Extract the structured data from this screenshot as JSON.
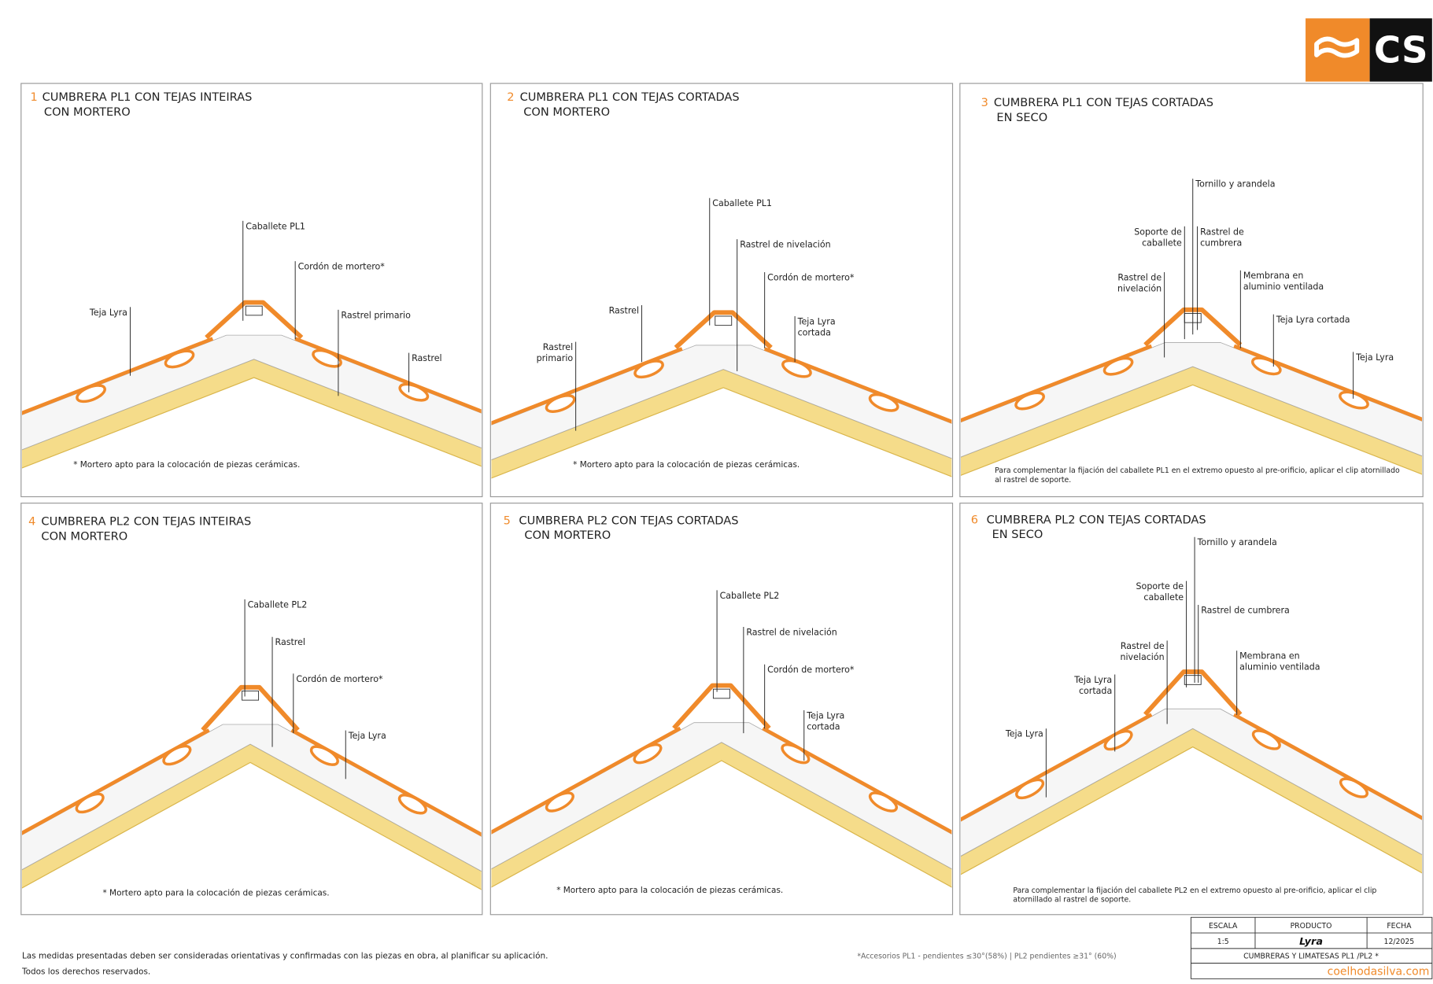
{
  "logo": "CS",
  "panels": [
    {
      "number": "1",
      "title": [
        "CUMBRERA PL1  CON TEJAS INTEIRAS",
        "CON MORTERO"
      ],
      "labels": [
        [
          "Caballete PL1"
        ],
        [
          "Cordón de mortero*"
        ],
        [
          "Teja Lyra"
        ],
        [
          "Rastrel primario"
        ],
        [
          "Rastrel"
        ]
      ],
      "note": [
        "* Mortero apto para la colocación de piezas cerámicas."
      ]
    },
    {
      "number": "2",
      "title": [
        "CUMBRERA PL1 CON TEJAS CORTADAS",
        "CON MORTERO"
      ],
      "labels": [
        [
          "Caballete PL1"
        ],
        [
          "Rastrel de nivelación"
        ],
        [
          "Cordón de mortero*"
        ],
        [
          "Rastrel"
        ],
        [
          "Teja Lyra",
          "cortada"
        ],
        [
          "Rastrel",
          "primario"
        ]
      ],
      "note": [
        "* Mortero apto para la colocación de piezas cerámicas."
      ]
    },
    {
      "number": "3",
      "title": [
        "CUMBRERA PL1 CON TEJAS CORTADAS",
        "EN SECO"
      ],
      "labels": [
        [
          "Tornillo y arandela"
        ],
        [
          "Soporte de",
          "caballete"
        ],
        [
          "Rastrel de",
          "cumbrera"
        ],
        [
          "Rastrel de",
          "nivelación"
        ],
        [
          "Membrana en",
          "aluminio ventilada"
        ],
        [
          "Teja Lyra cortada"
        ],
        [
          "Teja Lyra"
        ]
      ],
      "note": [
        "Para complementar la fijación del caballete PL1 en el extremo opuesto al pre-orificio, aplicar el clip atornillado",
        "al rastrel de soporte."
      ]
    },
    {
      "number": "4",
      "title": [
        "CUMBRERA PL2  CON TEJAS INTEIRAS",
        "CON MORTERO"
      ],
      "labels": [
        [
          "Caballete PL2"
        ],
        [
          "Rastrel"
        ],
        [
          "Cordón de mortero*"
        ],
        [
          "Teja Lyra"
        ]
      ],
      "note": [
        "* Mortero apto para la colocación de piezas cerámicas."
      ]
    },
    {
      "number": "5",
      "title": [
        "CUMBRERA PL2 CON TEJAS CORTADAS",
        "CON MORTERO"
      ],
      "labels": [
        [
          "Caballete PL2"
        ],
        [
          "Rastrel de nivelación"
        ],
        [
          "Cordón de mortero*"
        ],
        [
          "Teja Lyra",
          "cortada"
        ]
      ],
      "note": [
        "* Mortero apto para la colocación de piezas cerámicas."
      ]
    },
    {
      "number": "6",
      "title": [
        "CUMBRERA PL2 CON TEJAS CORTADAS",
        "EN SECO"
      ],
      "labels": [
        [
          "Tornillo y arandela"
        ],
        [
          "Soporte de",
          "caballete"
        ],
        [
          "Rastrel de cumbrera"
        ],
        [
          "Rastrel de",
          "nivelación"
        ],
        [
          "Membrana en",
          "aluminio ventilada"
        ],
        [
          "Teja Lyra",
          "cortada"
        ],
        [
          "Teja Lyra"
        ]
      ],
      "note": [
        "Para complementar la fijación del caballete PL2 en el extremo opuesto al pre-orificio, aplicar el clip",
        "atornillado al rastrel de soporte."
      ]
    }
  ],
  "footer": {
    "disclaimer": [
      "Las medidas presentadas deben ser consideradas orientativas y confirmadas con las piezas en obra, al planificar su aplicación.",
      "Todos los derechos reservados."
    ],
    "accessories": "*Accesorios PL1 - pendientes ≤30°(58%)  | PL2 pendientes ≥31° (60%)"
  },
  "title_block": {
    "headers": [
      "ESCALA",
      "PRODUCTO",
      "FECHA"
    ],
    "values": [
      "1:5",
      "Lyra",
      "12/2025"
    ],
    "description": "CUMBRERAS Y LIMATESAS PL1 /PL2 *",
    "website": "coelhodasilva.com"
  }
}
